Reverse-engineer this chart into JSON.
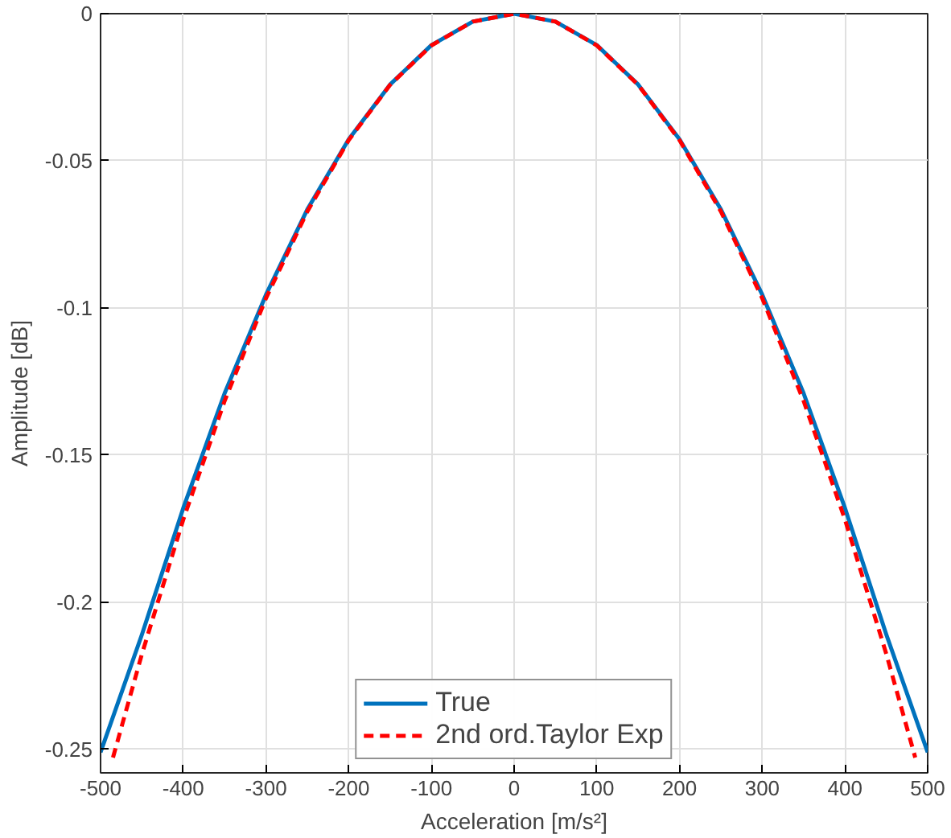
{
  "chart_data": {
    "type": "line",
    "xlabel": "Acceleration [m/s²]",
    "ylabel": "Amplitude [dB]",
    "x": [
      -500,
      -450,
      -400,
      -350,
      -300,
      -250,
      -200,
      -150,
      -100,
      -50,
      0,
      50,
      100,
      150,
      200,
      250,
      300,
      350,
      400,
      450,
      500
    ],
    "series": [
      {
        "name": "True",
        "color": "#0072bd",
        "line_style": "solid",
        "values": [
          -0.251,
          -0.211,
          -0.168,
          -0.129,
          -0.0955,
          -0.0665,
          -0.0427,
          -0.0241,
          -0.0107,
          -0.0027,
          0,
          -0.0027,
          -0.0107,
          -0.0241,
          -0.0427,
          -0.0665,
          -0.0955,
          -0.129,
          -0.168,
          -0.211,
          -0.251
        ]
      },
      {
        "name": "2nd ord.Taylor Exp",
        "color": "#ff0000",
        "line_style": "dashed",
        "x": [
          -485,
          -450,
          -400,
          -350,
          -300,
          -250,
          -200,
          -150,
          -100,
          -50,
          0,
          50,
          100,
          150,
          200,
          250,
          300,
          350,
          400,
          450,
          485
        ],
        "values": [
          -0.2528,
          -0.2176,
          -0.1719,
          -0.1316,
          -0.0967,
          -0.0672,
          -0.043,
          -0.0242,
          -0.0108,
          -0.0027,
          0,
          -0.0027,
          -0.0108,
          -0.0242,
          -0.043,
          -0.0672,
          -0.0967,
          -0.1316,
          -0.1719,
          -0.2176,
          -0.2528
        ]
      }
    ],
    "xlim": [
      -500,
      500
    ],
    "ylim": [
      -0.258,
      0
    ],
    "xticks": [
      -500,
      -400,
      -300,
      -200,
      -100,
      0,
      100,
      200,
      300,
      400,
      500
    ],
    "yticks": [
      {
        "value": -0.25,
        "label": "-0.25"
      },
      {
        "value": -0.2,
        "label": "-0.2"
      },
      {
        "value": -0.15,
        "label": "-0.15"
      },
      {
        "value": -0.1,
        "label": "-0.1"
      },
      {
        "value": -0.05,
        "label": "-0.05"
      },
      0
    ],
    "grid": true,
    "legend": "bottom"
  }
}
